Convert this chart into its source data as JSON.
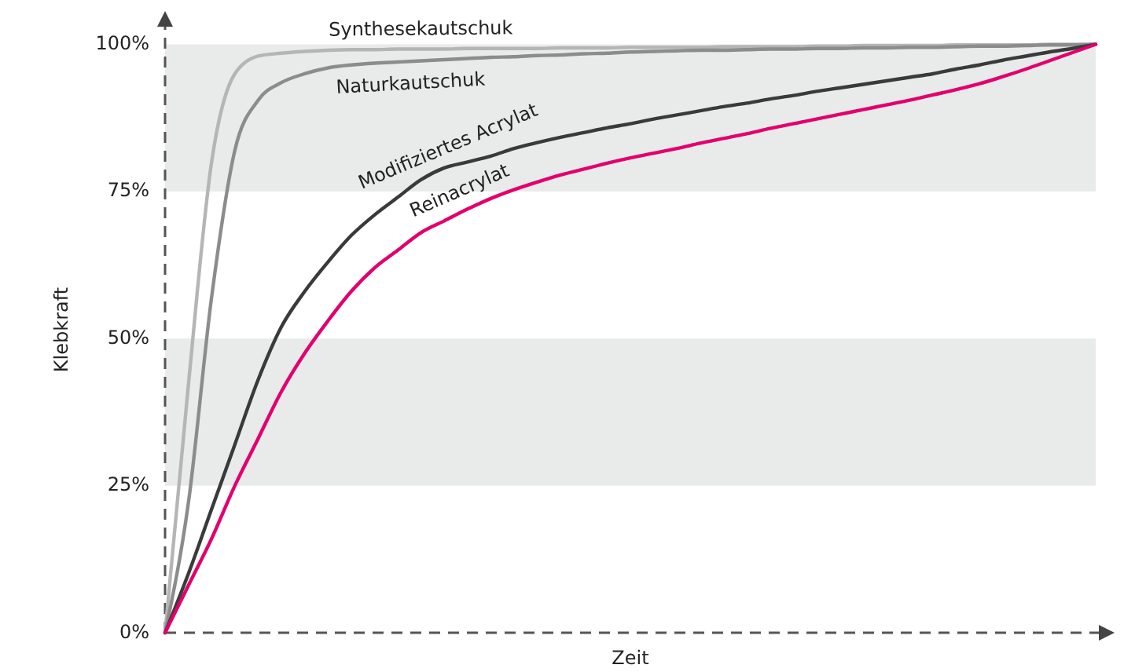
{
  "chart_data": {
    "type": "line",
    "xlabel": "Zeit",
    "ylabel": "Klebkraft",
    "line_style": "solid",
    "categories": [
      null,
      null,
      null,
      null,
      null,
      null,
      null,
      null,
      null,
      null,
      null,
      null,
      null,
      null,
      null,
      null,
      null,
      null,
      null,
      null,
      null,
      null,
      null,
      null,
      null,
      null,
      null,
      null,
      null,
      null,
      null,
      null,
      null,
      null,
      null,
      null,
      null,
      null,
      null,
      null,
      null
    ],
    "ylim": [
      0,
      103
    ],
    "yticks": [
      {
        "value": 0,
        "label": "0%"
      },
      {
        "value": 25,
        "label": "25%"
      },
      {
        "value": 50,
        "label": "50%"
      },
      {
        "value": 75,
        "label": "75%"
      },
      {
        "value": 100,
        "label": "100%"
      }
    ],
    "bands": [
      {
        "axis": "y",
        "from": 75,
        "to": 100,
        "color": "#e9eaea"
      },
      {
        "axis": "y",
        "from": 25,
        "to": 50,
        "color": "#e9eaea"
      }
    ],
    "series": [
      {
        "name": "Synthesekautschuk",
        "color": "#b5b5b5",
        "values": [
          0,
          42,
          80,
          95,
          98,
          98.5,
          98.8,
          99,
          99.1,
          99.1,
          99.2,
          99.2,
          99.2,
          99.3,
          99.3,
          99.3,
          99.3,
          99.4,
          99.4,
          99.4,
          99.5,
          99.5,
          99.5,
          99.5,
          99.6,
          99.6,
          99.6,
          99.6,
          99.7,
          99.7,
          99.8,
          99.8,
          99.8,
          99.8,
          99.9,
          99.9,
          99.9,
          99.9,
          100,
          100,
          100
        ]
      },
      {
        "name": "Naturkautschuk",
        "color": "#8c8c8c",
        "values": [
          0,
          22,
          57,
          82,
          90.5,
          93.5,
          95,
          96,
          96.5,
          96.8,
          97,
          97.2,
          97.4,
          97.6,
          97.8,
          97.9,
          98.1,
          98.2,
          98.4,
          98.5,
          98.7,
          98.8,
          98.9,
          99,
          99,
          99.1,
          99.2,
          99.2,
          99.3,
          99.3,
          99.4,
          99.4,
          99.5,
          99.5,
          99.6,
          99.7,
          99.7,
          99.8,
          99.9,
          99.9,
          100
        ]
      },
      {
        "name": "Modifiziertes Acrylat",
        "color": "#3a3a3a",
        "values": [
          0,
          10,
          21,
          32,
          43,
          52,
          58,
          63,
          67.5,
          71,
          74,
          77,
          79,
          80,
          81,
          82.3,
          83.3,
          84.2,
          85,
          85.8,
          86.5,
          87.3,
          88,
          88.7,
          89.4,
          90,
          90.7,
          91.3,
          92,
          92.6,
          93.2,
          93.8,
          94.4,
          95,
          95.8,
          96.5,
          97.3,
          98,
          98.7,
          99.3,
          100
        ]
      },
      {
        "name": "Reinacrylat",
        "color": "#e2006e",
        "values": [
          0,
          8,
          16,
          25,
          33,
          41,
          47.5,
          53,
          58,
          62,
          65,
          68,
          70,
          72,
          73.8,
          75.3,
          76.6,
          77.8,
          78.8,
          79.8,
          80.7,
          81.5,
          82.3,
          83.2,
          84,
          84.8,
          85.7,
          86.5,
          87.3,
          88.1,
          88.9,
          89.7,
          90.5,
          91.4,
          92.3,
          93.3,
          94.5,
          95.8,
          97.2,
          98.6,
          100
        ]
      }
    ]
  }
}
